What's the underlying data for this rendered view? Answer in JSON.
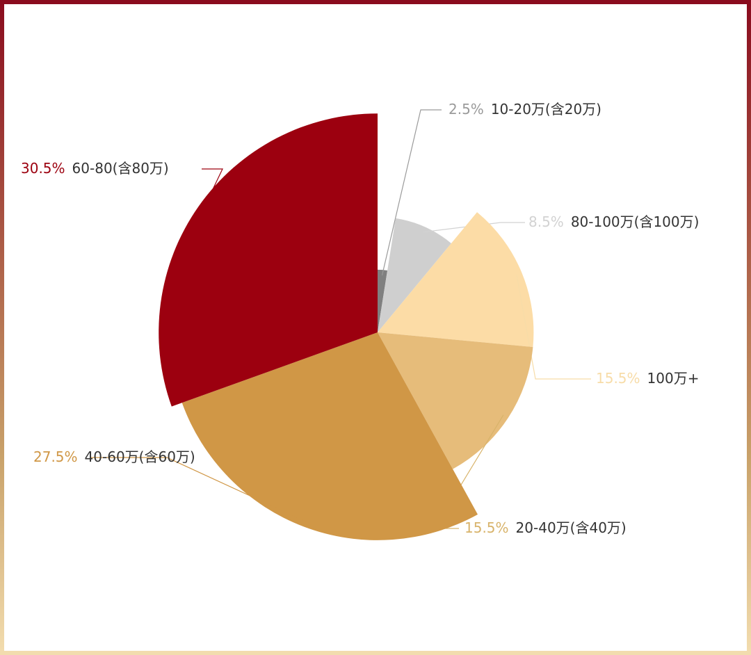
{
  "chart_data": {
    "type": "rose",
    "categories": [
      "10-20万(含20万)",
      "80-100万(含100万)",
      "100万+",
      "20-40万(含40万)",
      "40-60万(含60万)",
      "60-80(含80万)"
    ],
    "values": [
      2.5,
      8.5,
      15.5,
      15.5,
      27.5,
      30.5
    ],
    "value_labels": [
      "2.5%",
      "8.5%",
      "15.5%",
      "15.5%",
      "27.5%",
      "30.5%"
    ],
    "colors": [
      "#808080",
      "#cfcfcf",
      "#fcdca6",
      "#e6bc7a",
      "#d09746",
      "#9c000f"
    ]
  }
}
